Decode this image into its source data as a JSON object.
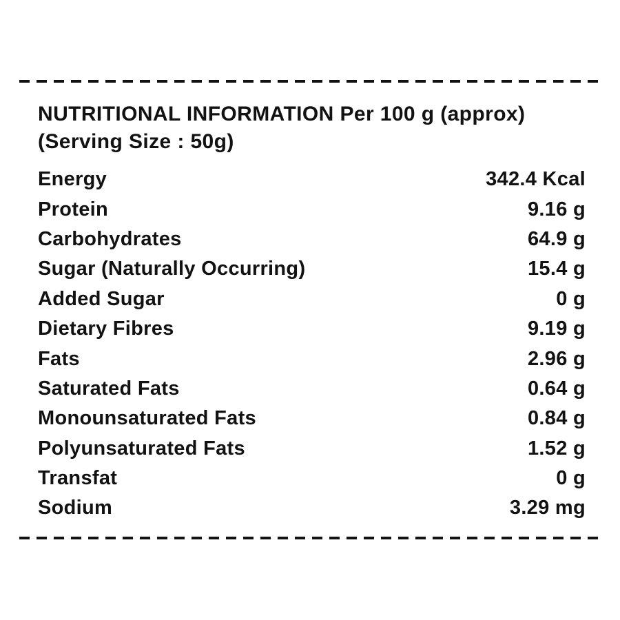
{
  "label": {
    "title": "NUTRITIONAL INFORMATION Per 100 g (approx)",
    "serving_size": "(Serving Size : 50g)",
    "rows": [
      {
        "name": "Energy",
        "value": "342.4 Kcal"
      },
      {
        "name": "Protein",
        "value": "9.16 g"
      },
      {
        "name": "Carbohydrates",
        "value": "64.9 g"
      },
      {
        "name": "Sugar (Naturally Occurring)",
        "value": "15.4 g"
      },
      {
        "name": "Added Sugar",
        "value": "0 g"
      },
      {
        "name": "Dietary Fibres",
        "value": "9.19 g"
      },
      {
        "name": "Fats",
        "value": "2.96 g"
      },
      {
        "name": "Saturated Fats",
        "value": "0.64 g"
      },
      {
        "name": "Monounsaturated Fats",
        "value": "0.84 g"
      },
      {
        "name": "Polyunsaturated Fats",
        "value": "1.52 g"
      },
      {
        "name": "Transfat",
        "value": "0 g"
      },
      {
        "name": "Sodium",
        "value": "3.29 mg"
      }
    ],
    "colors": {
      "text": "#121212",
      "background": "#ffffff"
    }
  }
}
